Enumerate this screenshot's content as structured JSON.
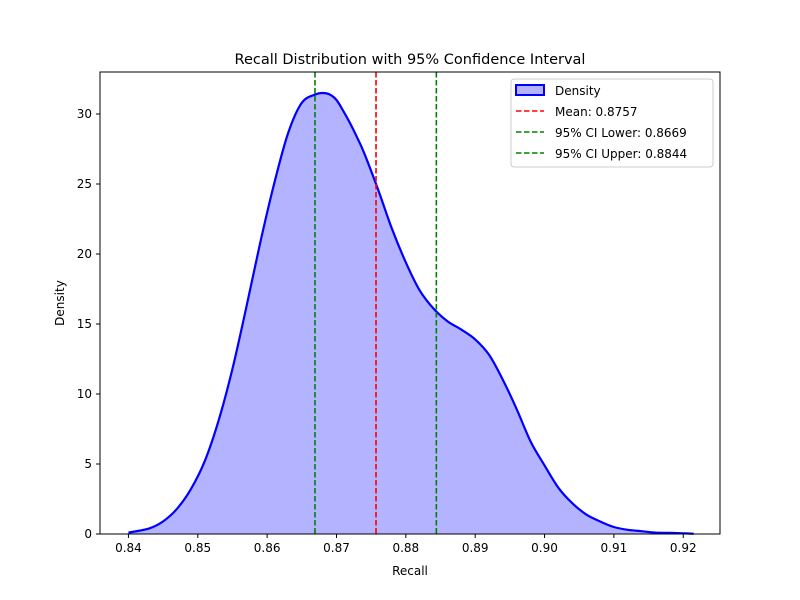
{
  "chart_data": {
    "type": "area",
    "title": "Recall Distribution with 95% Confidence Interval",
    "xlabel": "Recall",
    "ylabel": "Density",
    "xlim": [
      0.8359,
      0.9253
    ],
    "ylim": [
      0,
      33
    ],
    "grid": false,
    "legend_position": "top-right",
    "x_ticks": [
      0.84,
      0.85,
      0.86,
      0.87,
      0.88,
      0.89,
      0.9,
      0.91,
      0.92
    ],
    "x_tick_labels": [
      "0.84",
      "0.85",
      "0.86",
      "0.87",
      "0.88",
      "0.89",
      "0.90",
      "0.91",
      "0.92"
    ],
    "y_ticks": [
      0,
      5,
      10,
      15,
      20,
      25,
      30
    ],
    "y_tick_labels": [
      "0",
      "5",
      "10",
      "15",
      "20",
      "25",
      "30"
    ],
    "series": [
      {
        "name": "Density",
        "color": "#0000ff",
        "fill": "#b3b3ff",
        "x": [
          0.84,
          0.843,
          0.845,
          0.847,
          0.849,
          0.851,
          0.853,
          0.855,
          0.857,
          0.859,
          0.861,
          0.863,
          0.865,
          0.867,
          0.868,
          0.869,
          0.87,
          0.871,
          0.872,
          0.873,
          0.874,
          0.876,
          0.878,
          0.88,
          0.882,
          0.884,
          0.886,
          0.888,
          0.89,
          0.892,
          0.894,
          0.896,
          0.898,
          0.9,
          0.902,
          0.904,
          0.906,
          0.908,
          0.91,
          0.912,
          0.914,
          0.916,
          0.918,
          0.92,
          0.9215
        ],
        "y": [
          0.1,
          0.4,
          0.9,
          1.8,
          3.2,
          5.2,
          8.1,
          11.8,
          16.2,
          20.8,
          25.0,
          28.6,
          30.8,
          31.4,
          31.5,
          31.4,
          31.0,
          30.2,
          29.3,
          28.3,
          27.2,
          24.6,
          21.8,
          19.4,
          17.4,
          16.1,
          15.2,
          14.6,
          13.9,
          12.8,
          11.0,
          8.9,
          6.6,
          4.9,
          3.3,
          2.2,
          1.4,
          0.9,
          0.5,
          0.3,
          0.2,
          0.1,
          0.08,
          0.05,
          0.02
        ]
      }
    ],
    "vlines": [
      {
        "name": "Mean: 0.8757",
        "x": 0.8757,
        "color": "#ff0000",
        "style": "dashed"
      },
      {
        "name": "95% CI Lower: 0.8669",
        "x": 0.8669,
        "color": "#008000",
        "style": "dashed"
      },
      {
        "name": "95% CI Upper: 0.8844",
        "x": 0.8844,
        "color": "#008000",
        "style": "dashed"
      }
    ]
  }
}
